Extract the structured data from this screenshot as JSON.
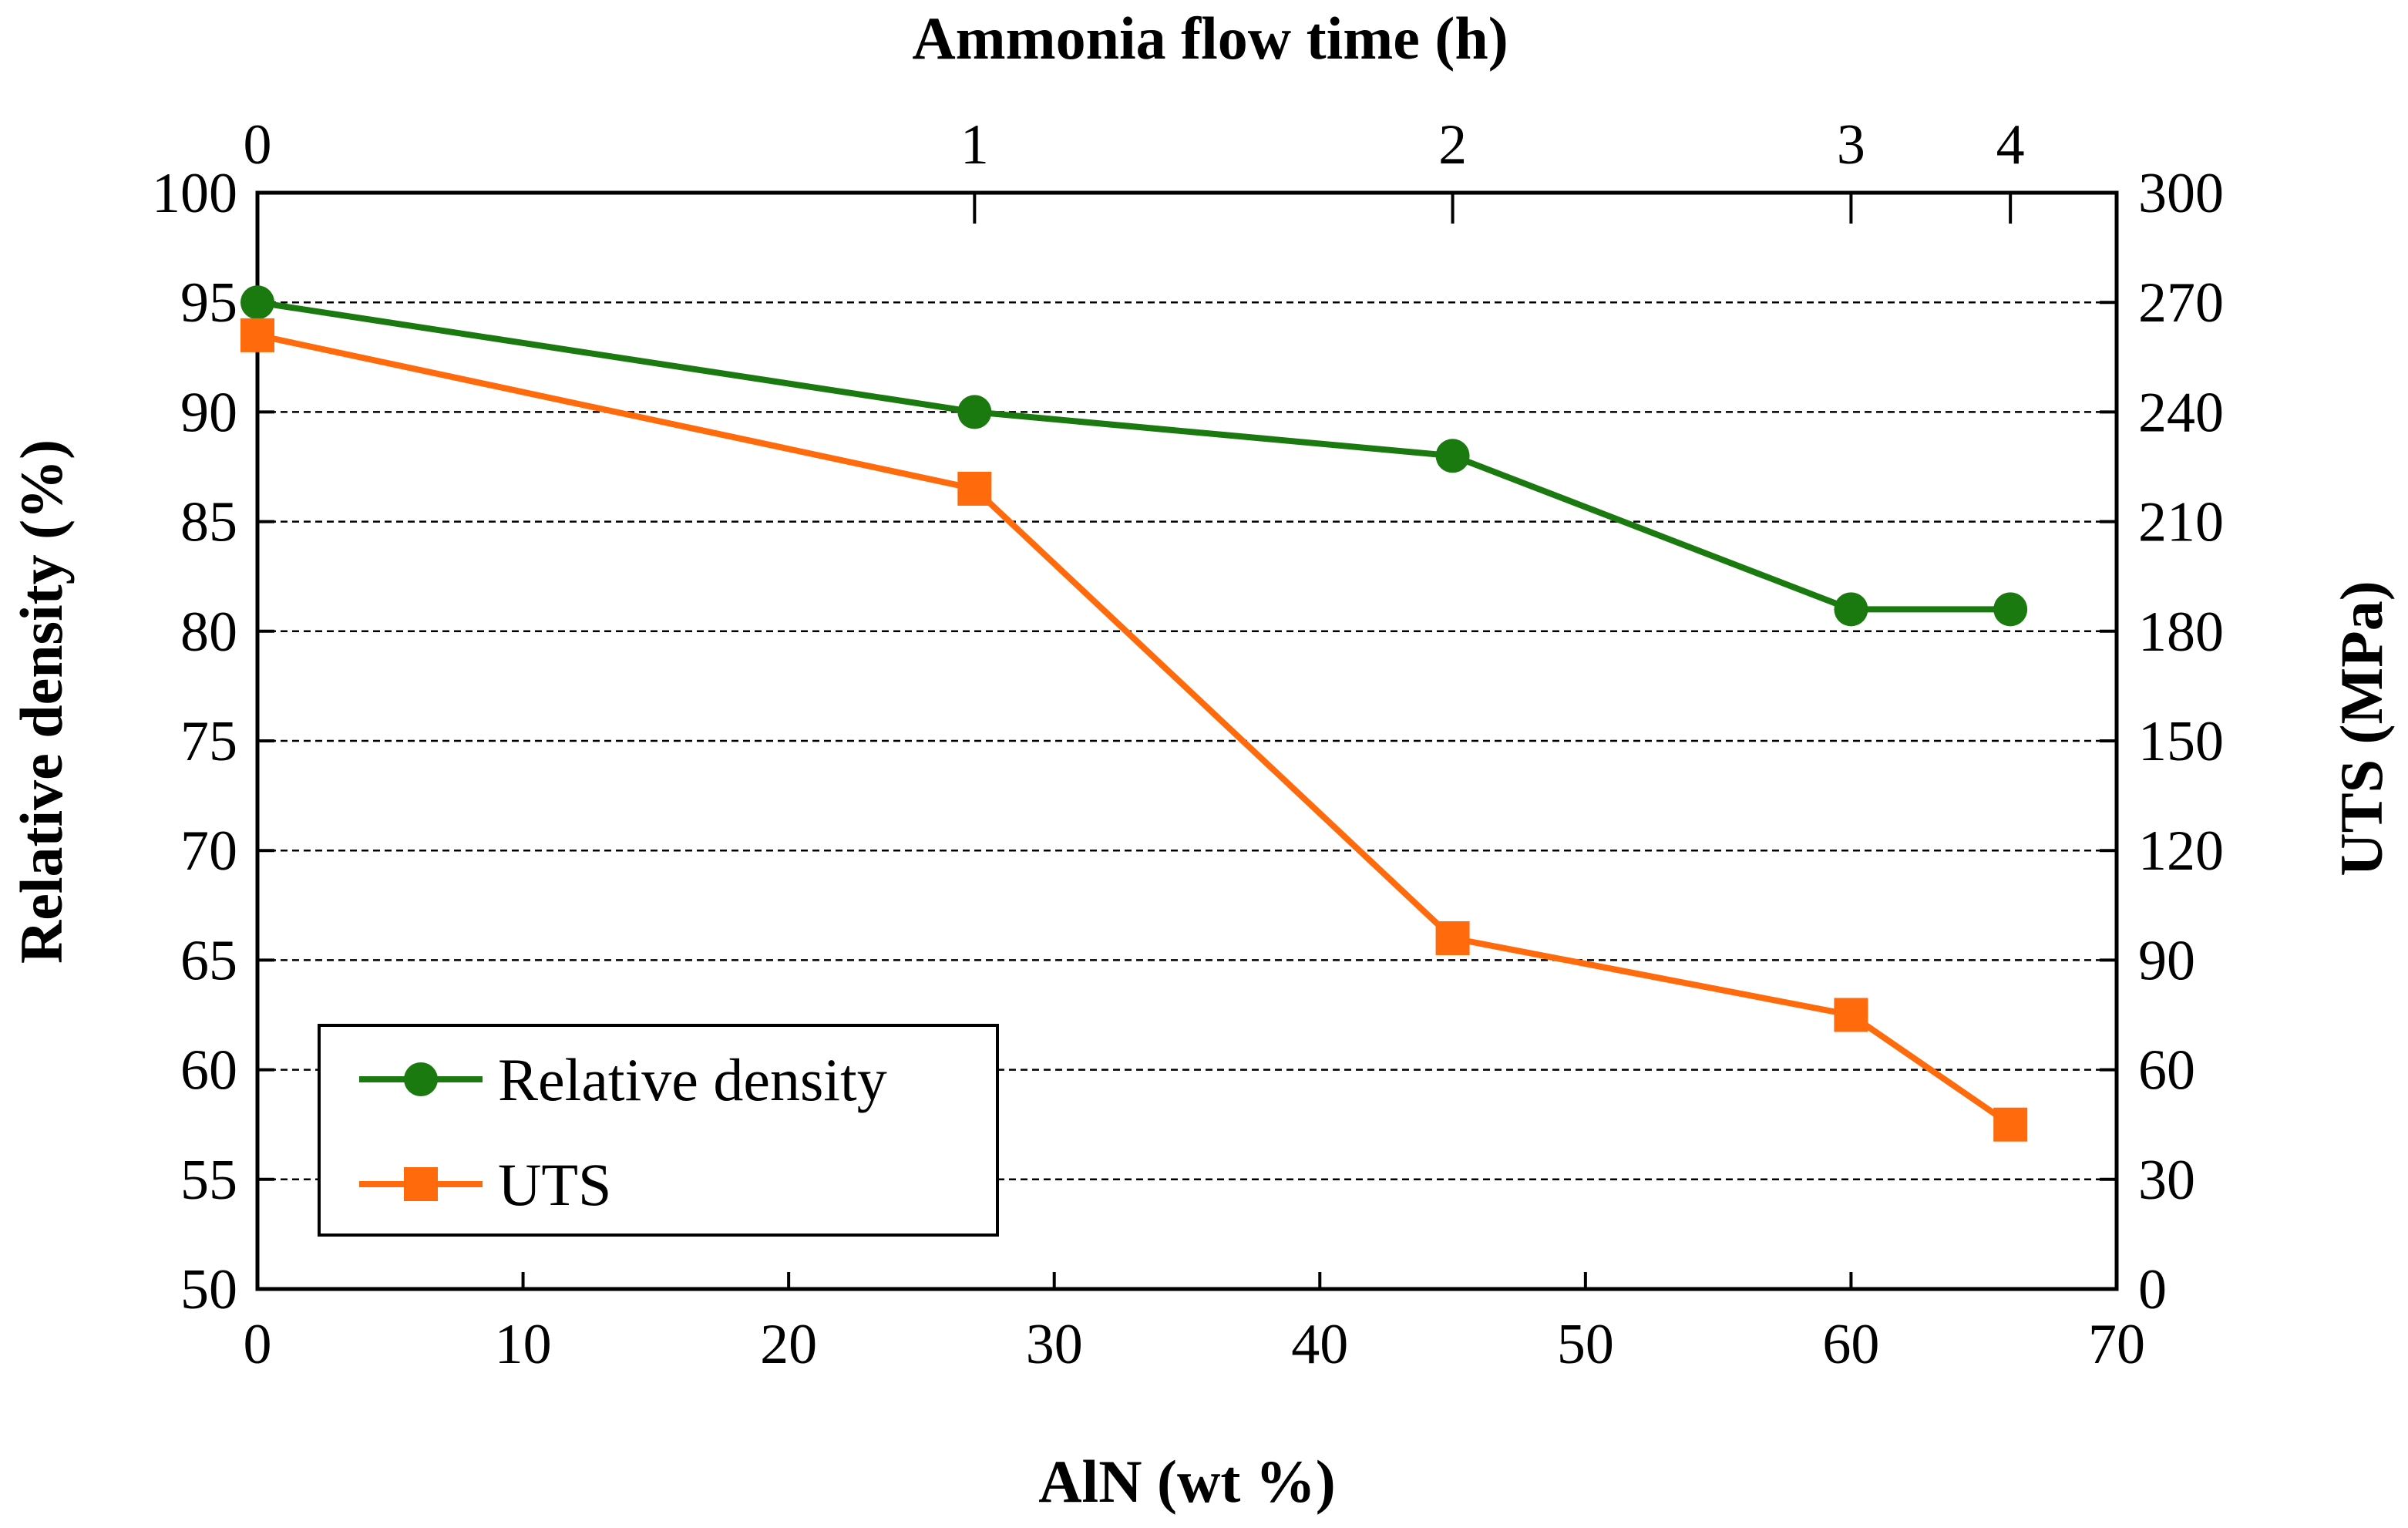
{
  "chart_data": {
    "type": "line",
    "title": "",
    "xlabel": "AlN (wt %)",
    "x2label": "Ammonia flow time (h)",
    "ylabel": "Relative density (%)",
    "y2label": "UTS (MPa)",
    "xlim": [
      0,
      70
    ],
    "ylim": [
      50,
      100
    ],
    "y2lim": [
      0,
      300
    ],
    "x_ticks": [
      "0",
      "10",
      "20",
      "30",
      "40",
      "50",
      "60",
      "70"
    ],
    "y_ticks": [
      "50",
      "55",
      "60",
      "65",
      "70",
      "75",
      "80",
      "85",
      "90",
      "95",
      "100"
    ],
    "y2_ticks": [
      "0",
      "30",
      "60",
      "90",
      "120",
      "150",
      "180",
      "210",
      "240",
      "270",
      "300"
    ],
    "top_ticks": [
      {
        "label": "0",
        "x": 0
      },
      {
        "label": "1",
        "x": 27
      },
      {
        "label": "2",
        "x": 45
      },
      {
        "label": "3",
        "x": 60
      },
      {
        "label": "4",
        "x": 66
      }
    ],
    "grid": "horizontal-dashed",
    "legend_position": "bottom-left",
    "series": [
      {
        "name": "Relative density",
        "axis": "left",
        "color": "#1a7a10",
        "marker": "circle",
        "x": [
          0,
          27,
          45,
          60,
          66
        ],
        "values": [
          95,
          90,
          88,
          81,
          81
        ]
      },
      {
        "name": "UTS",
        "axis": "right",
        "color": "#ff6a0d",
        "marker": "square",
        "x": [
          0,
          27,
          45,
          60,
          66
        ],
        "values": [
          261,
          219,
          96,
          75,
          45
        ]
      }
    ]
  }
}
